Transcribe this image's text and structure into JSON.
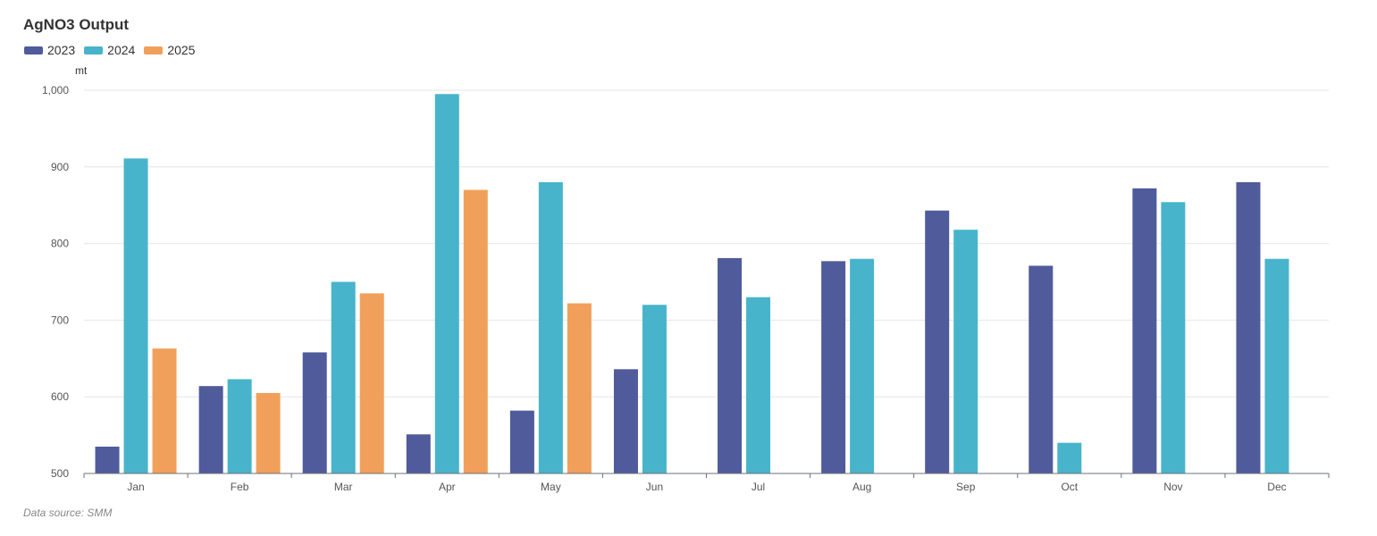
{
  "chart_data": {
    "type": "bar",
    "title": "AgNO3 Output",
    "ylabel": "mt",
    "xlabel": "",
    "source": "Data source:  SMM",
    "categories": [
      "Jan",
      "Feb",
      "Mar",
      "Apr",
      "May",
      "Jun",
      "Jul",
      "Aug",
      "Sep",
      "Oct",
      "Nov",
      "Dec"
    ],
    "ylim": [
      500,
      1000
    ],
    "yticks": [
      500,
      600,
      700,
      800,
      900,
      1000
    ],
    "ytick_labels": [
      "500",
      "600",
      "700",
      "800",
      "900",
      "1,000"
    ],
    "grid": true,
    "legend": "top-left",
    "series": [
      {
        "name": "2023",
        "color": "#4f5b9a",
        "values": [
          535,
          614,
          658,
          551,
          582,
          636,
          781,
          777,
          843,
          771,
          872,
          880
        ]
      },
      {
        "name": "2024",
        "color": "#47b4cb",
        "values": [
          911,
          623,
          750,
          995,
          880,
          720,
          730,
          780,
          818,
          540,
          854,
          780
        ]
      },
      {
        "name": "2025",
        "color": "#f0a05a",
        "values": [
          663,
          605,
          735,
          870,
          722,
          null,
          null,
          null,
          null,
          null,
          null,
          null
        ]
      }
    ]
  }
}
